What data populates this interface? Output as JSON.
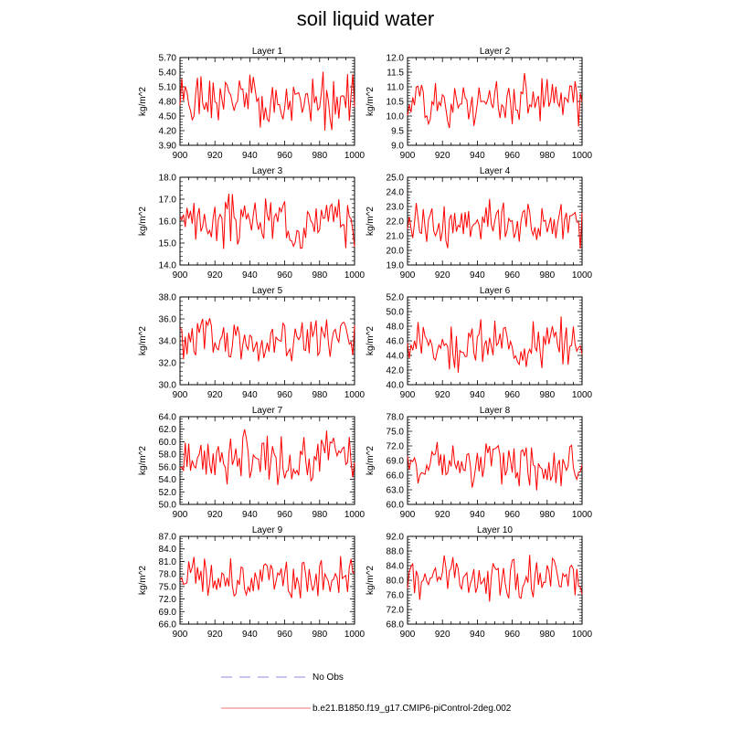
{
  "title": "soil liquid water",
  "line_color": "#ff0000",
  "obs_color": "#b0b0e8",
  "legend": {
    "obs_label": "No Obs",
    "model_label": "b.e21.B1850.f19_g17.CMIP6-piControl-2deg.002"
  },
  "chart_data": [
    {
      "type": "line",
      "title": "Layer 1",
      "xlabel": "",
      "ylabel": "kg/m^2",
      "xlim": [
        900,
        1000
      ],
      "xticks": [
        900,
        920,
        940,
        960,
        980,
        1000
      ],
      "ylim": [
        3.9,
        5.7
      ],
      "yticks": [
        "3.90",
        "4.20",
        "4.50",
        "4.80",
        "5.10",
        "5.40",
        "5.70"
      ],
      "base": 4.8,
      "amp": 0.65,
      "series": [
        {
          "name": "b.e21.B1850.f19_g17.CMIP6-piControl-2deg.002",
          "seed": 1
        }
      ]
    },
    {
      "type": "line",
      "title": "Layer 2",
      "xlabel": "",
      "ylabel": "kg/m^2",
      "xlim": [
        900,
        1000
      ],
      "xticks": [
        900,
        920,
        940,
        960,
        980,
        1000
      ],
      "ylim": [
        9.0,
        12.0
      ],
      "yticks": [
        "9.0",
        "9.5",
        "10.0",
        "10.5",
        "11.0",
        "11.5",
        "12.0"
      ],
      "base": 10.5,
      "amp": 1.0,
      "series": [
        {
          "name": "b.e21.B1850.f19_g17.CMIP6-piControl-2deg.002",
          "seed": 2
        }
      ]
    },
    {
      "type": "line",
      "title": "Layer 3",
      "xlabel": "",
      "ylabel": "kg/m^2",
      "xlim": [
        900,
        1000
      ],
      "xticks": [
        900,
        920,
        940,
        960,
        980,
        1000
      ],
      "ylim": [
        14.0,
        18.0
      ],
      "yticks": [
        "14.0",
        "15.0",
        "16.0",
        "17.0",
        "18.0"
      ],
      "base": 16.0,
      "amp": 1.4,
      "series": [
        {
          "name": "b.e21.B1850.f19_g17.CMIP6-piControl-2deg.002",
          "seed": 3
        }
      ]
    },
    {
      "type": "line",
      "title": "Layer 4",
      "xlabel": "",
      "ylabel": "kg/m^2",
      "xlim": [
        900,
        1000
      ],
      "xticks": [
        900,
        920,
        940,
        960,
        980,
        1000
      ],
      "ylim": [
        19.0,
        25.0
      ],
      "yticks": [
        "19.0",
        "20.0",
        "21.0",
        "22.0",
        "23.0",
        "24.0",
        "25.0"
      ],
      "base": 21.9,
      "amp": 2.0,
      "series": [
        {
          "name": "b.e21.B1850.f19_g17.CMIP6-piControl-2deg.002",
          "seed": 4
        }
      ]
    },
    {
      "type": "line",
      "title": "Layer 5",
      "xlabel": "",
      "ylabel": "kg/m^2",
      "xlim": [
        900,
        1000
      ],
      "xticks": [
        900,
        920,
        940,
        960,
        980,
        1000
      ],
      "ylim": [
        30.0,
        38.0
      ],
      "yticks": [
        "30.0",
        "32.0",
        "34.0",
        "36.0",
        "38.0"
      ],
      "base": 34.0,
      "amp": 2.8,
      "series": [
        {
          "name": "b.e21.B1850.f19_g17.CMIP6-piControl-2deg.002",
          "seed": 5
        }
      ]
    },
    {
      "type": "line",
      "title": "Layer 6",
      "xlabel": "",
      "ylabel": "kg/m^2",
      "xlim": [
        900,
        1000
      ],
      "xticks": [
        900,
        920,
        940,
        960,
        980,
        1000
      ],
      "ylim": [
        40.0,
        52.0
      ],
      "yticks": [
        "40.0",
        "42.0",
        "44.0",
        "46.0",
        "48.0",
        "50.0",
        "52.0"
      ],
      "base": 45.5,
      "amp": 4.0,
      "series": [
        {
          "name": "b.e21.B1850.f19_g17.CMIP6-piControl-2deg.002",
          "seed": 6
        }
      ]
    },
    {
      "type": "line",
      "title": "Layer 7",
      "xlabel": "",
      "ylabel": "kg/m^2",
      "xlim": [
        900,
        1000
      ],
      "xticks": [
        900,
        920,
        940,
        960,
        980,
        1000
      ],
      "ylim": [
        50.0,
        64.0
      ],
      "yticks": [
        "50.0",
        "52.0",
        "54.0",
        "56.0",
        "58.0",
        "60.0",
        "62.0",
        "64.0"
      ],
      "base": 57.5,
      "amp": 5.0,
      "series": [
        {
          "name": "b.e21.B1850.f19_g17.CMIP6-piControl-2deg.002",
          "seed": 7
        }
      ]
    },
    {
      "type": "line",
      "title": "Layer 8",
      "xlabel": "",
      "ylabel": "kg/m^2",
      "xlim": [
        900,
        1000
      ],
      "xticks": [
        900,
        920,
        940,
        960,
        980,
        1000
      ],
      "ylim": [
        60.0,
        78.0
      ],
      "yticks": [
        "60.0",
        "63.0",
        "66.0",
        "69.0",
        "72.0",
        "75.0",
        "78.0"
      ],
      "base": 68.0,
      "amp": 6.0,
      "series": [
        {
          "name": "b.e21.B1850.f19_g17.CMIP6-piControl-2deg.002",
          "seed": 8
        }
      ]
    },
    {
      "type": "line",
      "title": "Layer 9",
      "xlabel": "",
      "ylabel": "kg/m^2",
      "xlim": [
        900,
        1000
      ],
      "xticks": [
        900,
        920,
        940,
        960,
        980,
        1000
      ],
      "ylim": [
        66.0,
        87.0
      ],
      "yticks": [
        "66.0",
        "69.0",
        "72.0",
        "75.0",
        "78.0",
        "81.0",
        "84.0",
        "87.0"
      ],
      "base": 77.0,
      "amp": 6.5,
      "series": [
        {
          "name": "b.e21.B1850.f19_g17.CMIP6-piControl-2deg.002",
          "seed": 9
        }
      ]
    },
    {
      "type": "line",
      "title": "Layer 10",
      "xlabel": "",
      "ylabel": "kg/m^2",
      "xlim": [
        900,
        1000
      ],
      "xticks": [
        900,
        920,
        940,
        960,
        980,
        1000
      ],
      "ylim": [
        68.0,
        92.0
      ],
      "yticks": [
        "68.0",
        "72.0",
        "76.0",
        "80.0",
        "84.0",
        "88.0",
        "92.0"
      ],
      "base": 81.0,
      "amp": 7.5,
      "series": [
        {
          "name": "b.e21.B1850.f19_g17.CMIP6-piControl-2deg.002",
          "seed": 10
        }
      ]
    }
  ]
}
